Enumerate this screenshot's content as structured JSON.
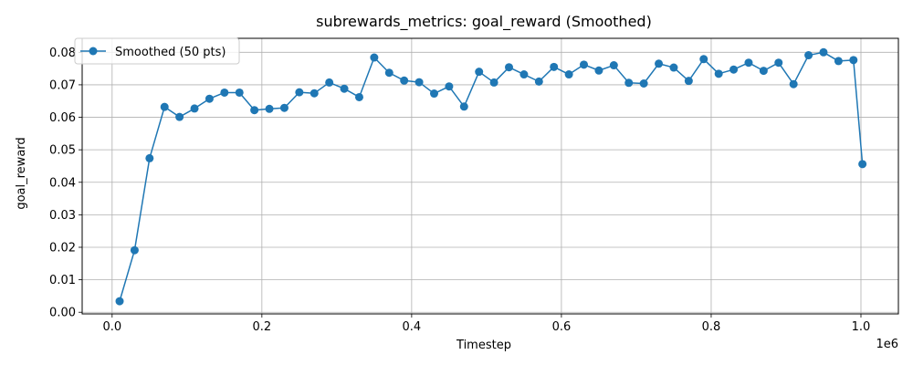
{
  "chart_data": {
    "type": "line",
    "title": "subrewards_metrics: goal_reward (Smoothed)",
    "xlabel": "Timestep",
    "ylabel": "goal_reward",
    "x_offset_label": "1e6",
    "xlim": [
      -40000,
      1050000
    ],
    "ylim": [
      -0.0005,
      0.0843
    ],
    "x_ticks": [
      0,
      200000,
      400000,
      600000,
      800000,
      1000000
    ],
    "x_tick_labels": [
      "0.0",
      "0.2",
      "0.4",
      "0.6",
      "0.8",
      "1.0"
    ],
    "y_ticks": [
      0.0,
      0.01,
      0.02,
      0.03,
      0.04,
      0.05,
      0.06,
      0.07,
      0.08
    ],
    "y_tick_labels": [
      "0.00",
      "0.01",
      "0.02",
      "0.03",
      "0.04",
      "0.05",
      "0.06",
      "0.07",
      "0.08"
    ],
    "grid": true,
    "legend_position": "top-left",
    "color": "#1f77b4",
    "series": [
      {
        "name": "Smoothed (50 pts)",
        "x": [
          10000,
          30000,
          50000,
          70000,
          90000,
          110000,
          130000,
          150000,
          170000,
          190000,
          210000,
          230000,
          250000,
          270000,
          290000,
          310000,
          330000,
          350000,
          370000,
          390000,
          410000,
          430000,
          450000,
          470000,
          490000,
          510000,
          530000,
          550000,
          570000,
          590000,
          610000,
          630000,
          650000,
          670000,
          690000,
          710000,
          730000,
          750000,
          770000,
          790000,
          810000,
          830000,
          850000,
          870000,
          890000,
          910000,
          930000,
          950000,
          970000,
          990000,
          1002000
        ],
        "y": [
          0.0034,
          0.0191,
          0.0474,
          0.0632,
          0.0601,
          0.0627,
          0.0657,
          0.0676,
          0.0676,
          0.0622,
          0.0626,
          0.0629,
          0.0677,
          0.0674,
          0.0707,
          0.0688,
          0.0662,
          0.0784,
          0.0737,
          0.0713,
          0.0708,
          0.0673,
          0.0695,
          0.0633,
          0.074,
          0.0707,
          0.0754,
          0.0732,
          0.071,
          0.0755,
          0.0732,
          0.0762,
          0.0744,
          0.076,
          0.0706,
          0.0704,
          0.0765,
          0.0753,
          0.0712,
          0.0779,
          0.0734,
          0.0747,
          0.0768,
          0.0743,
          0.0768,
          0.0702,
          0.0791,
          0.08,
          0.0773,
          0.0776,
          0.0456
        ]
      }
    ]
  }
}
